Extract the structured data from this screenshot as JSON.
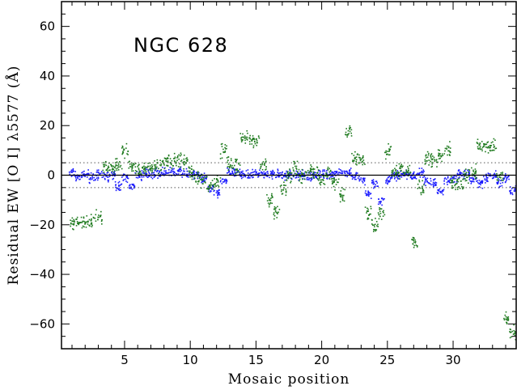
{
  "chart_data": {
    "type": "scatter",
    "title": "",
    "annotation": "NGC 628",
    "xlabel": "Mosaic position",
    "ylabel": "Residual EW [O I] λ5577 (Å)",
    "xlim": [
      0.2,
      34.8
    ],
    "ylim": [
      -70,
      70
    ],
    "x_ticks": [
      5,
      10,
      15,
      20,
      25,
      30
    ],
    "y_ticks": [
      -60,
      -40,
      -20,
      0,
      20,
      40,
      60
    ],
    "reference_lines": [
      -5,
      5
    ],
    "zero_line": 0,
    "colors": {
      "fitted": "#1a1aff",
      "rejected": "#1e7a1e",
      "axes": "#000000",
      "reference": "#555555"
    },
    "series": [
      {
        "color": "#1a1aff",
        "marker": "dot",
        "points_by_position": [
          [
            1,
            1.0
          ],
          [
            1.5,
            -0.5
          ],
          [
            2,
            0.5
          ],
          [
            2.5,
            -1.0
          ],
          [
            3,
            0.5
          ],
          [
            3.5,
            -0.5
          ],
          [
            4,
            0.5
          ],
          [
            4.5,
            -4.0
          ],
          [
            5,
            -1.0
          ],
          [
            5.5,
            -4.0
          ],
          [
            6,
            0.0
          ],
          [
            6.5,
            1.0
          ],
          [
            7,
            0.5
          ],
          [
            7.5,
            1.0
          ],
          [
            8,
            1.5
          ],
          [
            8.5,
            2.0
          ],
          [
            9,
            2.0
          ],
          [
            9.5,
            1.0
          ],
          [
            10,
            0.5
          ],
          [
            10.5,
            0.0
          ],
          [
            11,
            -1.0
          ],
          [
            11.5,
            -5.0
          ],
          [
            12,
            -7.0
          ],
          [
            12.5,
            -2.0
          ],
          [
            13,
            1.5
          ],
          [
            13.5,
            1.0
          ],
          [
            14,
            1.0
          ],
          [
            14.5,
            0.5
          ],
          [
            15,
            1.0
          ],
          [
            15.5,
            0.5
          ],
          [
            16,
            0.5
          ],
          [
            16.5,
            0.5
          ],
          [
            17,
            0.0
          ],
          [
            17.5,
            0.5
          ],
          [
            18,
            0.0
          ],
          [
            18.5,
            0.5
          ],
          [
            19,
            0.0
          ],
          [
            19.5,
            0.5
          ],
          [
            20,
            0.5
          ],
          [
            20.5,
            0.5
          ],
          [
            21,
            1.0
          ],
          [
            21.5,
            1.5
          ],
          [
            22,
            1.0
          ],
          [
            22.5,
            -0.5
          ],
          [
            23,
            -2.0
          ],
          [
            23.5,
            -7.0
          ],
          [
            24,
            -3.0
          ],
          [
            24.5,
            -10.0
          ],
          [
            25,
            -2.0
          ],
          [
            25.5,
            0.0
          ],
          [
            26,
            0.5
          ],
          [
            26.5,
            0.5
          ],
          [
            27,
            0.0
          ],
          [
            27.5,
            1.0
          ],
          [
            28,
            -2.0
          ],
          [
            28.5,
            -3.0
          ],
          [
            29,
            -6.0
          ],
          [
            29.5,
            -2.0
          ],
          [
            30,
            -1.0
          ],
          [
            30.5,
            1.0
          ],
          [
            31,
            0.5
          ],
          [
            31.5,
            -1.5
          ],
          [
            32,
            -3.0
          ],
          [
            32.5,
            -1.0
          ],
          [
            33,
            0.0
          ],
          [
            33.5,
            -3.0
          ],
          [
            34,
            -1.0
          ],
          [
            34.5,
            -6.0
          ]
        ]
      },
      {
        "color": "#1e7a1e",
        "marker": "dot",
        "points_by_position": [
          [
            1,
            -19.0
          ],
          [
            1.5,
            -19.0
          ],
          [
            2,
            -19.0
          ],
          [
            2.5,
            -18.0
          ],
          [
            3,
            -17.0
          ],
          [
            3.5,
            3.0
          ],
          [
            4,
            3.5
          ],
          [
            4.5,
            5.0
          ],
          [
            5,
            10.0
          ],
          [
            5.5,
            3.0
          ],
          [
            6,
            2.0
          ],
          [
            6.5,
            3.0
          ],
          [
            7,
            3.5
          ],
          [
            7.5,
            4.0
          ],
          [
            8,
            5.5
          ],
          [
            8.5,
            6.0
          ],
          [
            9,
            6.0
          ],
          [
            9.5,
            6.0
          ],
          [
            10,
            2.0
          ],
          [
            10.5,
            -1.0
          ],
          [
            11,
            -2.0
          ],
          [
            11.5,
            -4.0
          ],
          [
            12,
            -3.0
          ],
          [
            12.5,
            10.0
          ],
          [
            13,
            5.0
          ],
          [
            13.5,
            4.0
          ],
          [
            14,
            15.0
          ],
          [
            14.5,
            15.0
          ],
          [
            15,
            13.0
          ],
          [
            15.5,
            4.0
          ],
          [
            16,
            -10.0
          ],
          [
            16.5,
            -15.0
          ],
          [
            17,
            -5.0
          ],
          [
            17.5,
            0.0
          ],
          [
            18,
            3.0
          ],
          [
            18.5,
            0.0
          ],
          [
            19,
            2.0
          ],
          [
            19.5,
            1.0
          ],
          [
            20,
            -2.0
          ],
          [
            20.5,
            1.0
          ],
          [
            21,
            -3.0
          ],
          [
            21.5,
            -8.0
          ],
          [
            22,
            17.5
          ],
          [
            22.5,
            7.0
          ],
          [
            23,
            6.5
          ],
          [
            23.5,
            -15.0
          ],
          [
            24,
            -20.0
          ],
          [
            24.5,
            -15.0
          ],
          [
            25,
            10.0
          ],
          [
            25.5,
            2.0
          ],
          [
            26,
            2.0
          ],
          [
            26.5,
            1.5
          ],
          [
            27,
            -27.0
          ],
          [
            27.5,
            -5.0
          ],
          [
            28,
            7.0
          ],
          [
            28.5,
            6.5
          ],
          [
            29,
            8.0
          ],
          [
            29.5,
            11.0
          ],
          [
            30,
            -3.0
          ],
          [
            30.5,
            -3.0
          ],
          [
            31,
            0.0
          ],
          [
            31.5,
            2.0
          ],
          [
            32,
            12.0
          ],
          [
            32.5,
            12.0
          ],
          [
            33,
            11.5
          ],
          [
            33.5,
            0.0
          ],
          [
            34,
            -58.0
          ],
          [
            34.5,
            -63.0
          ]
        ]
      }
    ]
  }
}
